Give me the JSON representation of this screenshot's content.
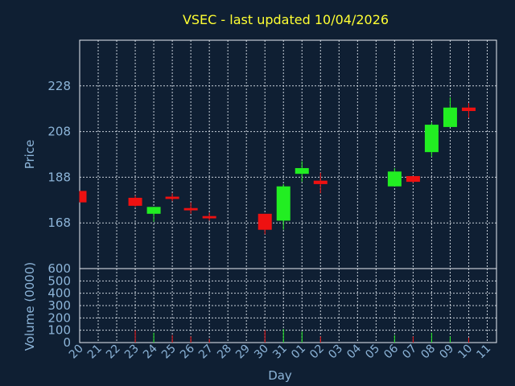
{
  "chart_data": {
    "type": "candlestick",
    "title": "VSEC - last updated 10/04/2026",
    "price_panel": {
      "ylabel": "Price",
      "yticks": [
        168,
        188,
        208,
        228
      ],
      "ylim": [
        148,
        248
      ]
    },
    "volume_panel": {
      "ylabel": "Volume (0000)",
      "yticks": [
        0,
        100,
        200,
        300,
        400,
        500,
        600
      ],
      "ylim": [
        0,
        600
      ]
    },
    "xlabel": "Day",
    "x_tick_labels": [
      "20",
      "21",
      "22",
      "23",
      "24",
      "25",
      "26",
      "27",
      "28",
      "29",
      "30",
      "31",
      "01",
      "02",
      "03",
      "04",
      "05",
      "06",
      "07",
      "08",
      "09",
      "10",
      "11"
    ],
    "candles": [
      {
        "day": "20",
        "open": 182,
        "high": 182,
        "low": 177,
        "close": 177,
        "volume": 0
      },
      {
        "day": "23",
        "open": 179,
        "high": 180,
        "low": 175,
        "close": 175.5,
        "volume": 100
      },
      {
        "day": "24",
        "open": 172,
        "high": 175,
        "low": 168.5,
        "close": 175,
        "volume": 80
      },
      {
        "day": "25",
        "open": 179.5,
        "high": 181,
        "low": 177.5,
        "close": 178.5,
        "volume": 60
      },
      {
        "day": "26",
        "open": 174.5,
        "high": 177,
        "low": 172,
        "close": 173.5,
        "volume": 50
      },
      {
        "day": "27",
        "open": 171,
        "high": 172.5,
        "low": 169,
        "close": 170,
        "volume": 30
      },
      {
        "day": "30",
        "open": 172,
        "high": 172,
        "low": 163,
        "close": 165,
        "volume": 100
      },
      {
        "day": "31",
        "open": 169,
        "high": 185,
        "low": 165,
        "close": 184,
        "volume": 110
      },
      {
        "day": "01",
        "open": 189.5,
        "high": 195,
        "low": 186,
        "close": 192,
        "volume": 90
      },
      {
        "day": "02",
        "open": 186.5,
        "high": 190,
        "low": 181,
        "close": 185,
        "volume": 50
      },
      {
        "day": "06",
        "open": 184,
        "high": 192,
        "low": 184,
        "close": 190.5,
        "volume": 60
      },
      {
        "day": "07",
        "open": 188.5,
        "high": 188.5,
        "low": 185.5,
        "close": 186,
        "volume": 50
      },
      {
        "day": "08",
        "open": 199,
        "high": 212,
        "low": 197,
        "close": 211,
        "volume": 80
      },
      {
        "day": "09",
        "open": 210,
        "high": 223,
        "low": 210,
        "close": 218.5,
        "volume": 50
      },
      {
        "day": "10",
        "open": 218.5,
        "high": 220.5,
        "low": 214,
        "close": 217,
        "volume": 40
      }
    ],
    "colors": {
      "background": "#0f1f33",
      "up": "#22ee22",
      "down": "#ee1111",
      "text": "#8cb4d8",
      "title": "#ffff33",
      "grid": "#e8eef5"
    },
    "grid": true
  }
}
